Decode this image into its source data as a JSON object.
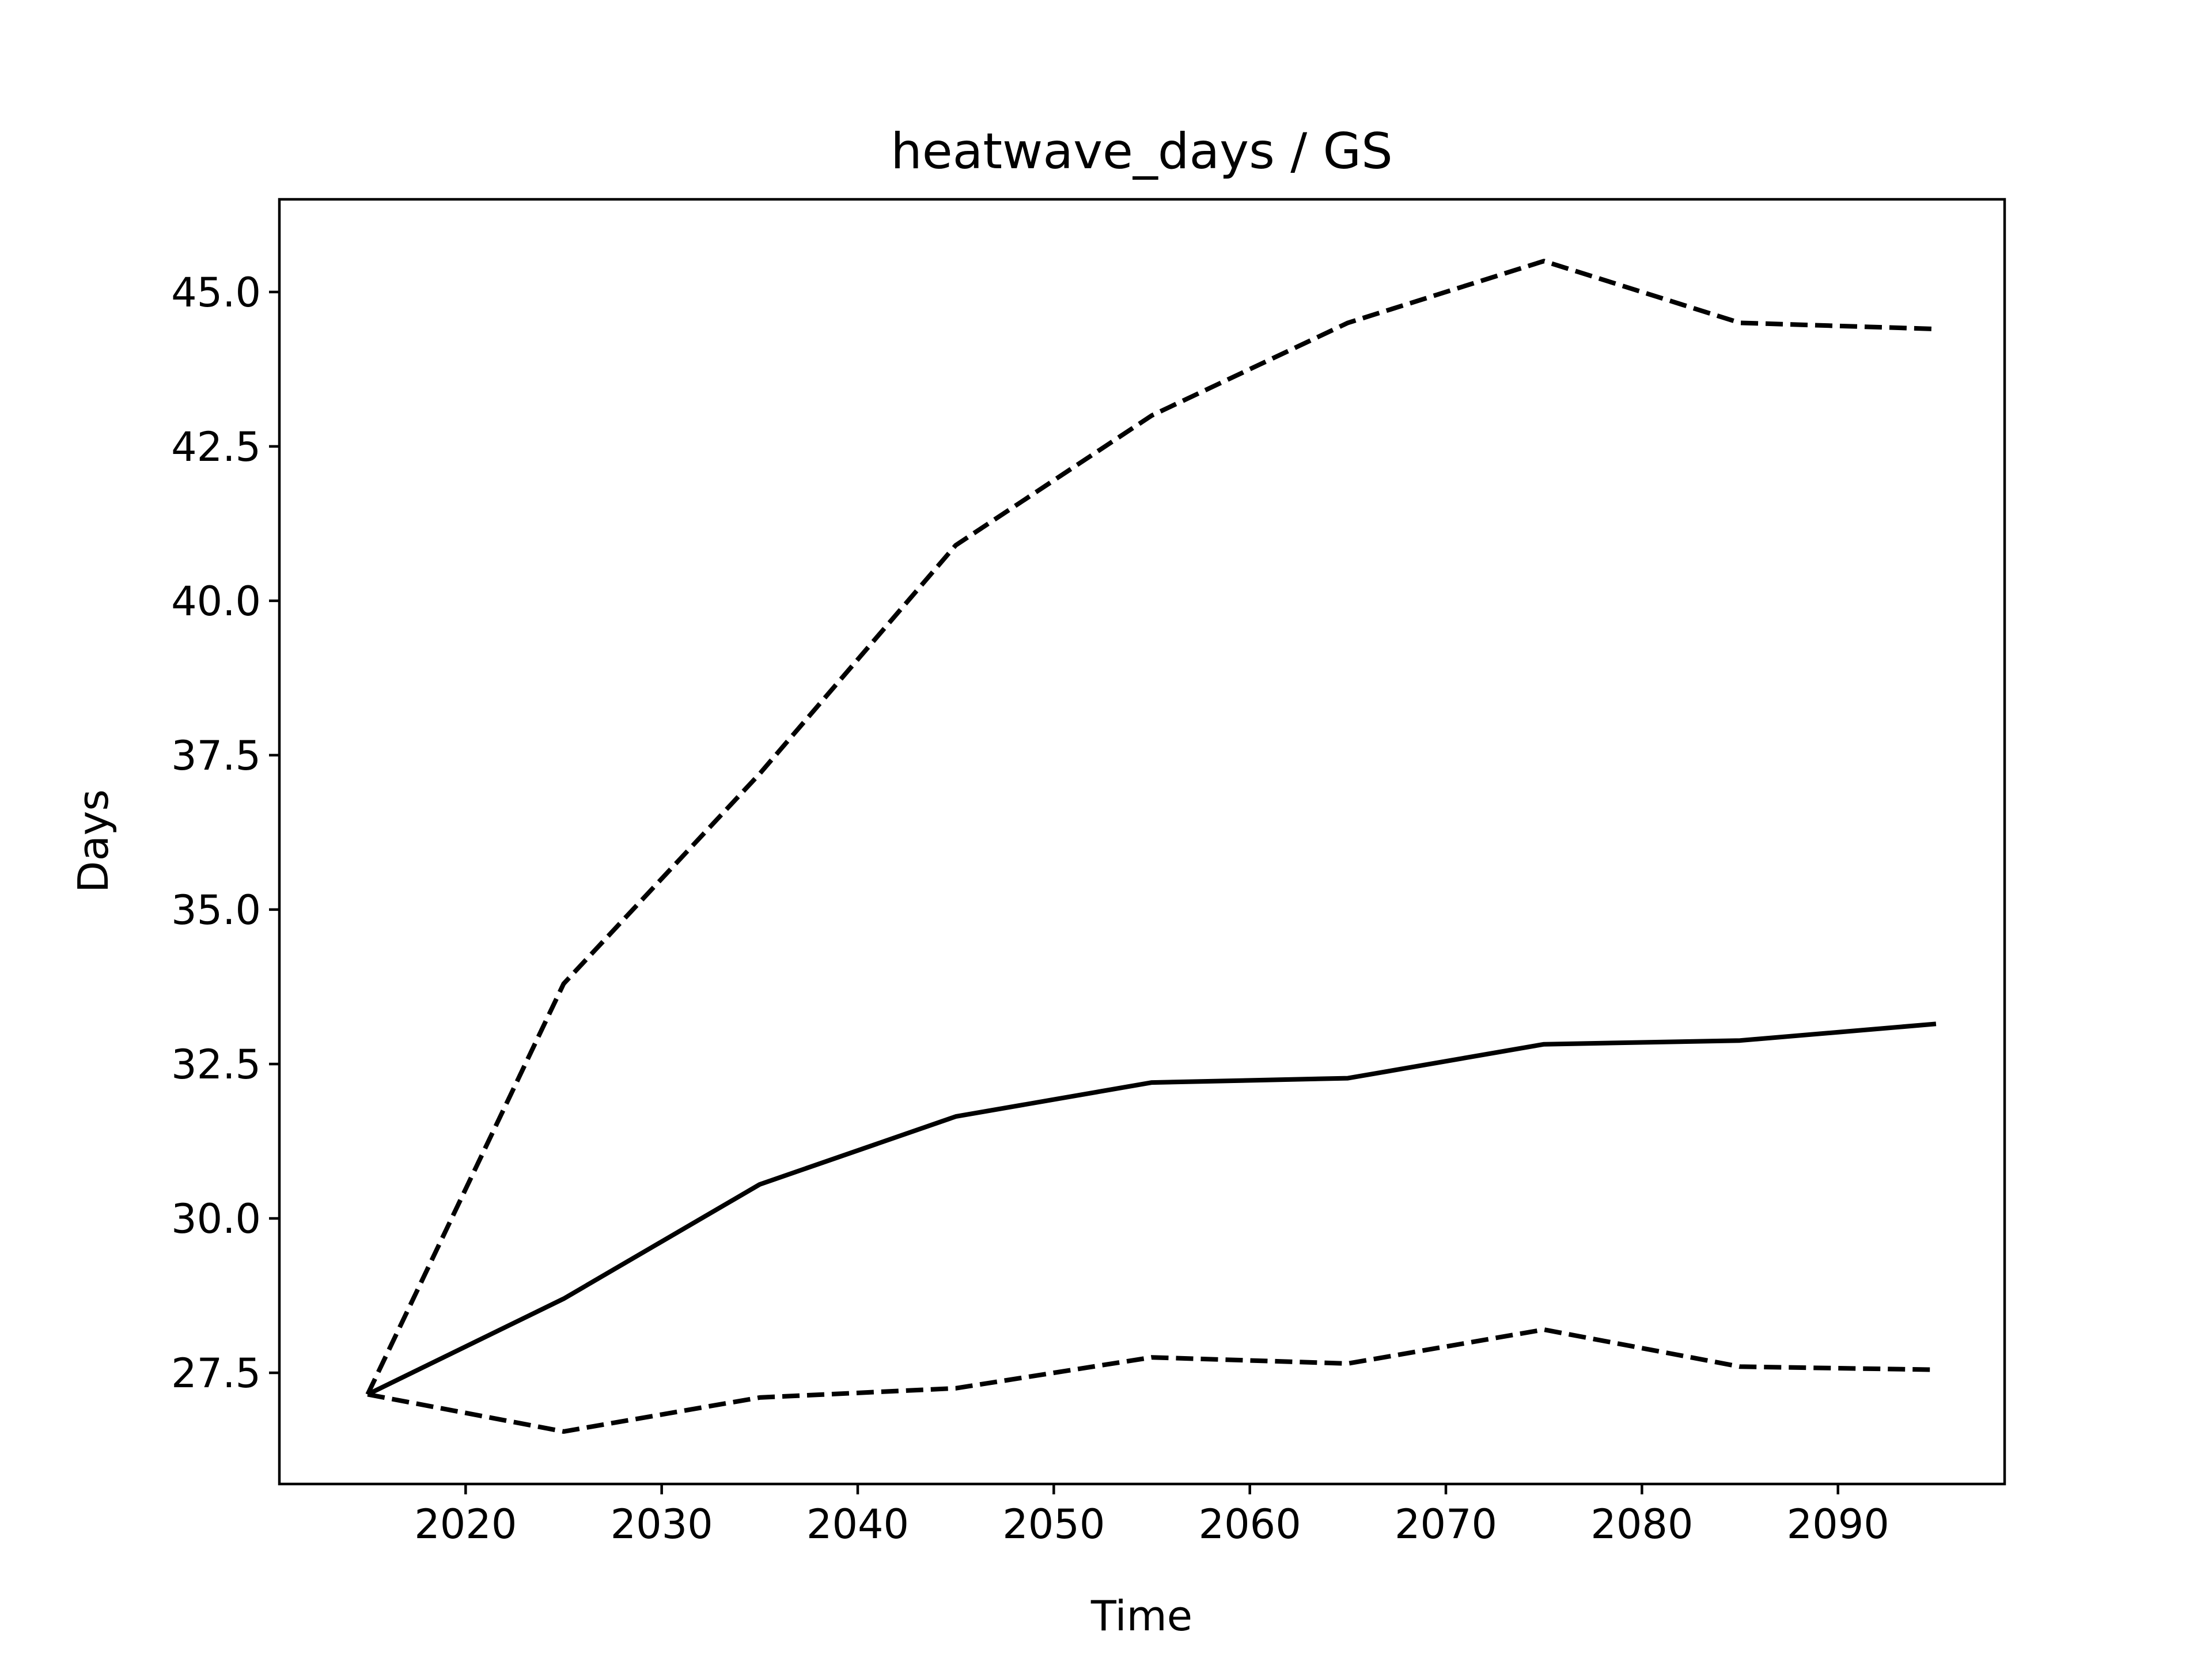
{
  "chart_data": {
    "type": "line",
    "title": "heatwave_days / GS",
    "xlabel": "Time",
    "ylabel": "Days",
    "xlim": [
      2010.5,
      2098.5
    ],
    "ylim": [
      25.7,
      46.5
    ],
    "xticks": [
      2020,
      2030,
      2040,
      2050,
      2060,
      2070,
      2080,
      2090
    ],
    "yticks": [
      27.5,
      30.0,
      32.5,
      35.0,
      37.5,
      40.0,
      42.5,
      45.0
    ],
    "ytick_labels": [
      "27.5",
      "30.0",
      "32.5",
      "35.0",
      "37.5",
      "40.0",
      "42.5",
      "45.0"
    ],
    "grid": false,
    "legend": "none",
    "x": [
      2015,
      2025,
      2035,
      2045,
      2055,
      2065,
      2075,
      2085,
      2095
    ],
    "series": [
      {
        "style": "dashed",
        "color": "#000000",
        "values": [
          27.15,
          33.8,
          37.2,
          40.9,
          43.0,
          44.5,
          45.5,
          44.5,
          44.4
        ]
      },
      {
        "style": "solid",
        "color": "#000000",
        "values": [
          27.15,
          28.7,
          30.55,
          31.65,
          32.2,
          32.27,
          32.82,
          32.88,
          33.15
        ]
      },
      {
        "style": "dashed",
        "color": "#000000",
        "values": [
          27.15,
          26.55,
          27.1,
          27.25,
          27.75,
          27.65,
          28.2,
          27.6,
          27.55
        ]
      }
    ]
  }
}
